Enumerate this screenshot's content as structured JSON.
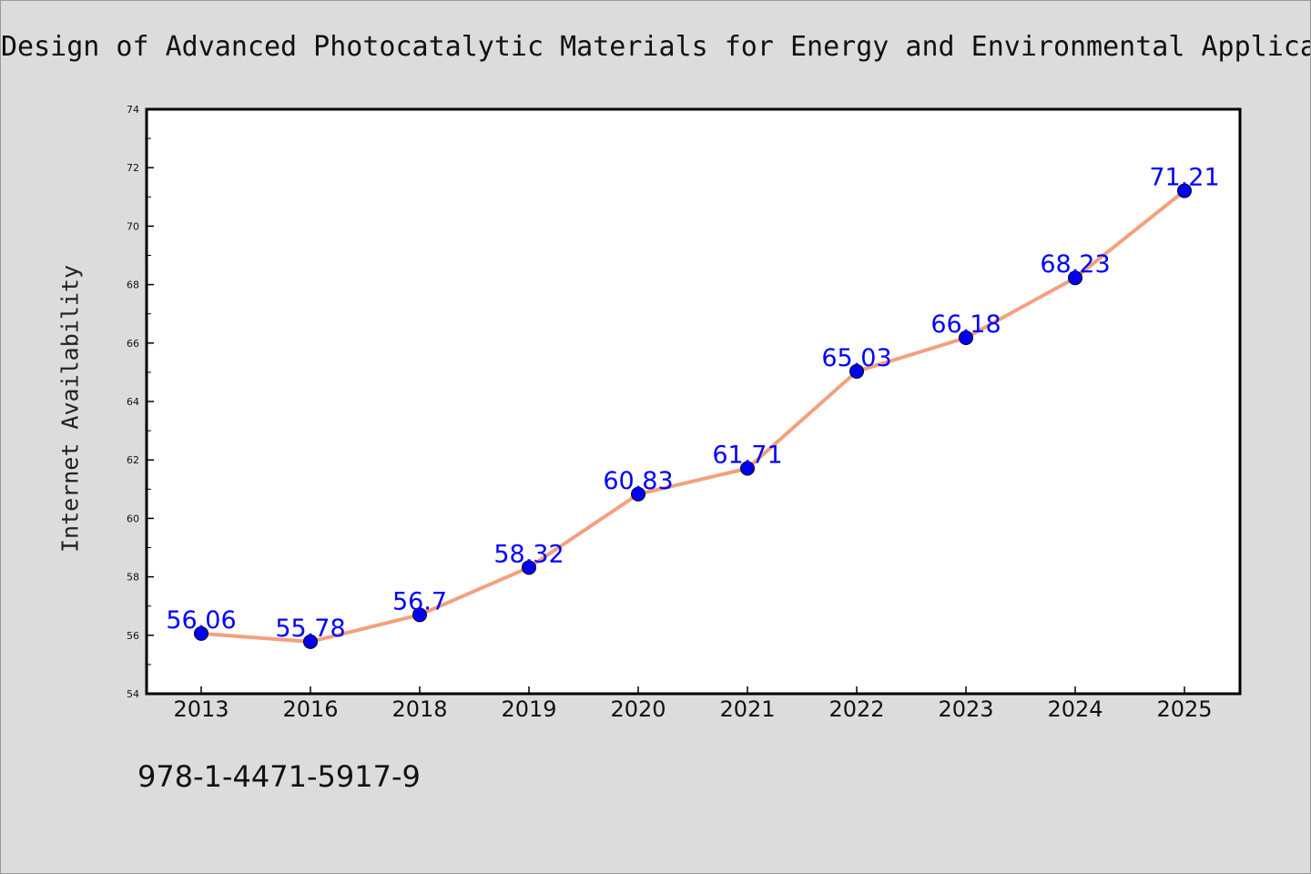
{
  "chart_data": {
    "type": "line",
    "title": "Design of Advanced Photocatalytic Materials for Energy and Environmental Applica",
    "ylabel": "Internet Availability",
    "xlabel": "",
    "categories": [
      "2013",
      "2016",
      "2018",
      "2019",
      "2020",
      "2021",
      "2022",
      "2023",
      "2024",
      "2025"
    ],
    "values": [
      56.06,
      55.78,
      56.7,
      58.32,
      60.83,
      61.71,
      65.03,
      66.18,
      68.23,
      71.21
    ],
    "data_labels": [
      "56.06",
      "55.78",
      "56.7",
      "58.32",
      "60.83",
      "61.71",
      "65.03",
      "66.18",
      "68.23",
      "71.21"
    ],
    "ylim": [
      54,
      74
    ],
    "yticks": [
      54,
      56,
      58,
      60,
      62,
      64,
      66,
      68,
      70,
      72,
      74
    ],
    "grid": false,
    "colors": {
      "line": "#f4a07e",
      "marker": "#0000ee",
      "data_label": "#0000ff",
      "plot_background": "#ffffff",
      "figure_background": "#dcdcdc"
    }
  },
  "footnote": "978-1-4471-5917-9"
}
